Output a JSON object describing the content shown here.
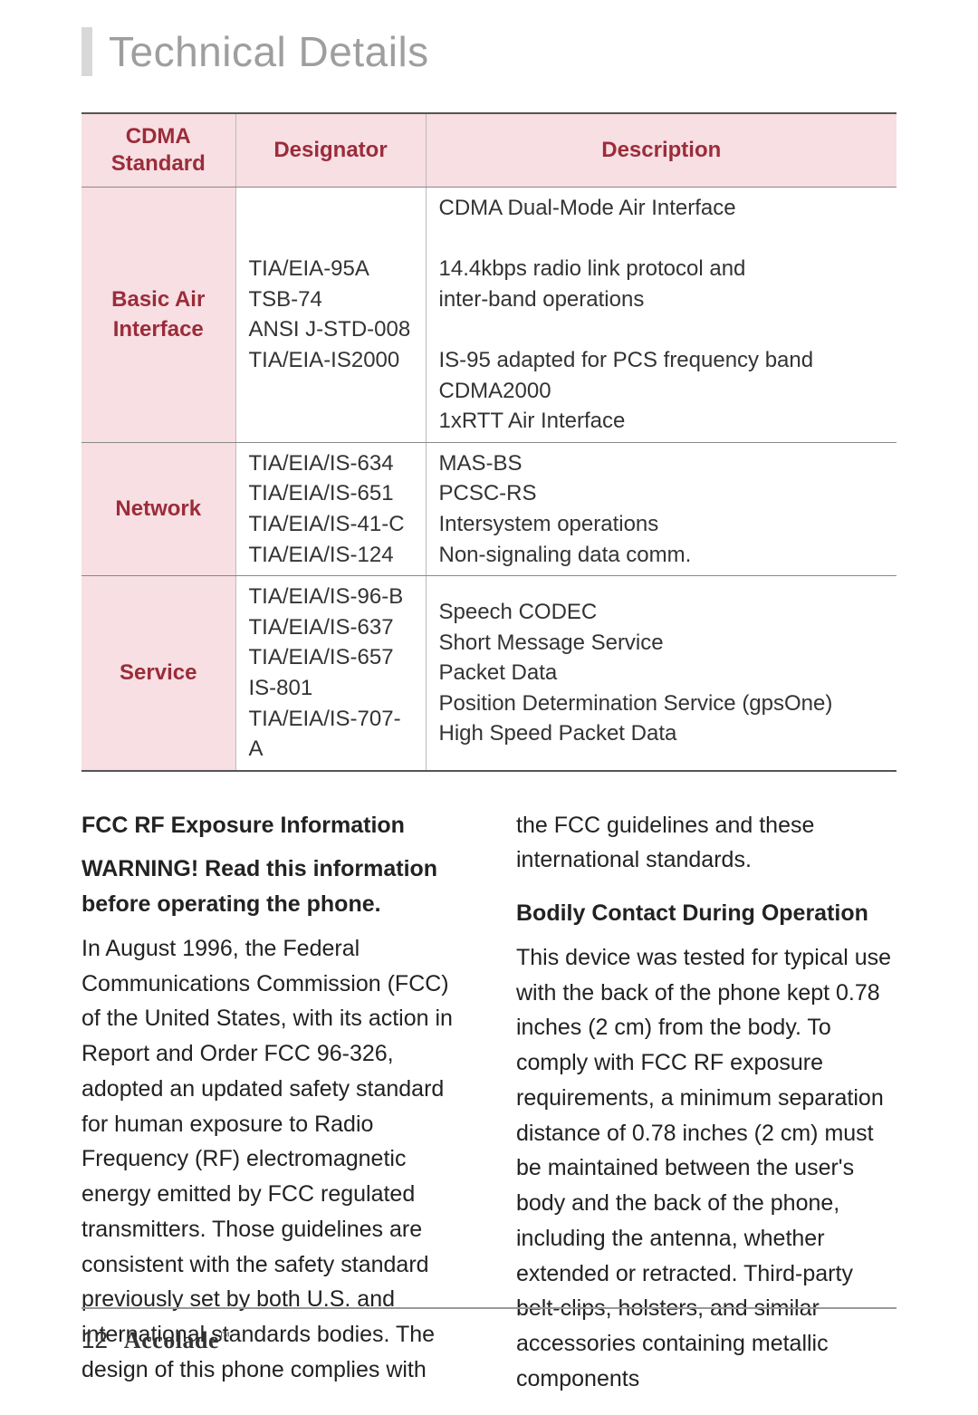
{
  "heading": {
    "title": "Technical Details",
    "title_color": "#9e9e9e",
    "bar_color": "#d8d8d8",
    "title_fontsize": 46
  },
  "table": {
    "header_bg": "#f7dfe3",
    "header_text_color": "#9b2c3a",
    "border_color": "#555555",
    "columns": [
      {
        "label": "CDMA\nStandard",
        "key": "cdma"
      },
      {
        "label": "Designator",
        "key": "designator"
      },
      {
        "label": "Description",
        "key": "description"
      }
    ],
    "groups": [
      {
        "label": "Basic Air Interface",
        "designators": "TIA/EIA-95A\nTSB-74\nANSI J-STD-008\nTIA/EIA-IS2000",
        "descriptions": "CDMA Dual-Mode Air Interface\n\n14.4kbps radio link protocol and\ninter-band operations\n\nIS-95 adapted for PCS frequency band CDMA2000\n1xRTT Air Interface"
      },
      {
        "label": "Network",
        "designators": "TIA/EIA/IS-634\nTIA/EIA/IS-651\nTIA/EIA/IS-41-C\nTIA/EIA/IS-124",
        "descriptions": "MAS-BS\nPCSC-RS\nIntersystem operations\nNon-signaling data comm."
      },
      {
        "label": "Service",
        "designators": "TIA/EIA/IS-96-B\nTIA/EIA/IS-637\nTIA/EIA/IS-657\nIS-801\nTIA/EIA/IS-707-A",
        "descriptions": "Speech CODEC\nShort Message Service\nPacket Data\nPosition Determination Service (gpsOne)\nHigh Speed Packet Data"
      }
    ]
  },
  "body": {
    "left": {
      "h1": "FCC RF Exposure Information",
      "h2": "WARNING! Read this information before operating the phone.",
      "p1": "In August 1996, the Federal Communications Commission (FCC) of the United States, with its action in Report and Order FCC 96-326, adopted an updated safety standard for human exposure to Radio Frequency (RF) electromagnetic energy emitted by FCC regulated transmitters. Those guidelines are consistent with the safety standard previously set by both U.S. and international standards bodies. The design of this phone complies with"
    },
    "right": {
      "cont": "the FCC guidelines and these international standards.",
      "h3": "Bodily Contact During Operation",
      "p2": "This device was tested for typical use with the back of the phone kept 0.78 inches (2 cm) from the body. To comply with FCC RF exposure requirements, a minimum separation distance of 0.78 inches (2 cm) must be maintained between the user's body and the back of the phone, including the antenna, whether extended or retracted. Third-party belt-clips, holsters, and similar accessories containing metallic components"
    }
  },
  "footer": {
    "page": "12",
    "brand": "Accolade",
    "tm": "™"
  }
}
